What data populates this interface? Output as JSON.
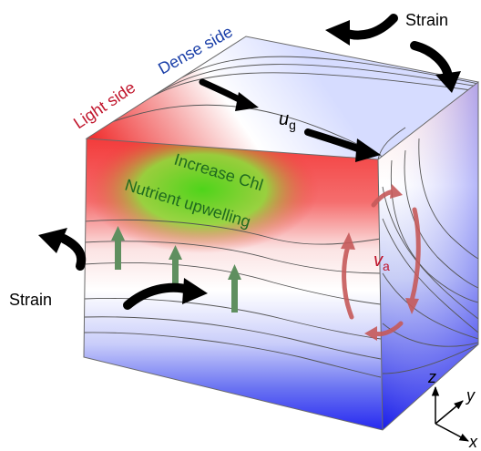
{
  "labels": {
    "strain_top": "Strain",
    "strain_left": "Strain",
    "light_side": "Light side",
    "dense_side": "Dense side",
    "ug_base": "u",
    "ug_sub": "g",
    "increase_chl": "Increase Chl",
    "nutrient_upwelling": "Nutrient upwelling",
    "va_base": "v",
    "va_sub": "a",
    "axis_z": "z",
    "axis_y": "y",
    "axis_x": "x"
  },
  "colors": {
    "light_side": "#c0142b",
    "dense_side": "#1a3fa8",
    "chl_text": "#1f6a1f",
    "upwelling_arrows": "#5f8f5f",
    "va_circulation": "#c65a5a",
    "strain_arrows": "#000000",
    "warm_water": "#ef3b3b",
    "cold_water": "#1515ff",
    "chlorophyll": "#49d11c"
  }
}
